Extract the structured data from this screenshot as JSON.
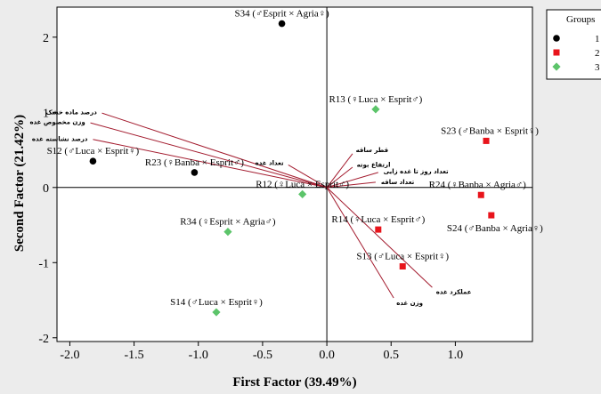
{
  "chart_data": {
    "type": "scatter",
    "title": "",
    "xlabel": "First Factor (39.49%)",
    "ylabel": "Second Factor (21.42%)",
    "xlim": [
      -2.1,
      1.6
    ],
    "ylim": [
      -2.05,
      2.4
    ],
    "x_ticks": [
      -2.0,
      -1.5,
      -1.0,
      -0.5,
      0.0,
      0.5,
      1.0
    ],
    "x_tick_labels": [
      "-2.0",
      "-1.5",
      "-1.0",
      "-0.5",
      "0.0",
      "0.5",
      "1.0"
    ],
    "y_ticks": [
      -2,
      -1,
      0,
      1,
      2
    ],
    "y_tick_labels": [
      "-2",
      "-1",
      "0",
      "1",
      "2"
    ],
    "reference_lines": {
      "x": 0,
      "y": 0
    },
    "legend": {
      "title": "Groups",
      "placement": "top-right",
      "entries": [
        {
          "label": "1",
          "color": "#000000",
          "marker": "circle"
        },
        {
          "label": "2",
          "color": "#e8141b",
          "marker": "square"
        },
        {
          "label": "3",
          "color": "#5cc46a",
          "marker": "diamond"
        }
      ]
    },
    "series": [
      {
        "name": "1",
        "color": "#000000",
        "marker": "circle",
        "points": [
          {
            "label": "S34 (♂Esprit × Agria♀)",
            "x": -0.35,
            "y": 2.18
          },
          {
            "label": "S12 (♂Luca × Esprit♀)",
            "x": -1.82,
            "y": 0.35
          },
          {
            "label": "R23 (♀Banba × Esprit♂)",
            "x": -1.03,
            "y": 0.2
          }
        ]
      },
      {
        "name": "2",
        "color": "#e8141b",
        "marker": "square",
        "points": [
          {
            "label": "S23 (♂Banba × Esprit♀)",
            "x": 1.24,
            "y": 0.62
          },
          {
            "label": "R24 (♀Banba × Agria♂)",
            "x": 1.2,
            "y": -0.1
          },
          {
            "label": "S24 (♂Banba × Agria♀)",
            "x": 1.28,
            "y": -0.37
          },
          {
            "label": "R14 (♀Luca × Esprit♂)",
            "x": 0.4,
            "y": -0.56
          },
          {
            "label": "S13 (♂Luca × Esprit♀)",
            "x": 0.59,
            "y": -1.05
          }
        ]
      },
      {
        "name": "3",
        "color": "#5cc46a",
        "marker": "diamond",
        "points": [
          {
            "label": "R13 (♀Luca × Esprit♂)",
            "x": 0.38,
            "y": 1.04
          },
          {
            "label": "R12 (♀Luca × Esprit♂)",
            "x": -0.19,
            "y": -0.09
          },
          {
            "label": "R34 (♀Esprit × Agria♂)",
            "x": -0.77,
            "y": -0.59
          },
          {
            "label": "S14 (♂Luca × Esprit♀)",
            "x": -0.86,
            "y": -1.66
          }
        ]
      }
    ],
    "vectors": {
      "color": "#a31b2e",
      "items": [
        {
          "label": "درصد ماده خشک",
          "x": -1.75,
          "y": 0.99
        },
        {
          "label": "وزن مخصوص غده",
          "x": -1.84,
          "y": 0.86
        },
        {
          "label": "درصد نشاسته غده",
          "x": -1.82,
          "y": 0.64
        },
        {
          "label": "تعداد غده",
          "x": -0.3,
          "y": 0.3
        },
        {
          "label": "قطر ساقه",
          "x": 0.2,
          "y": 0.45
        },
        {
          "label": "ارتفاع بوته",
          "x": 0.2,
          "y": 0.27
        },
        {
          "label": "تعداد روز تا غده زایی",
          "x": 0.4,
          "y": 0.2
        },
        {
          "label": "تعداد ساقه",
          "x": 0.38,
          "y": 0.07
        },
        {
          "label": "عملکرد غده",
          "x": 0.82,
          "y": -1.33
        },
        {
          "label": "وزن غده",
          "x": 0.52,
          "y": -1.47
        }
      ]
    }
  }
}
